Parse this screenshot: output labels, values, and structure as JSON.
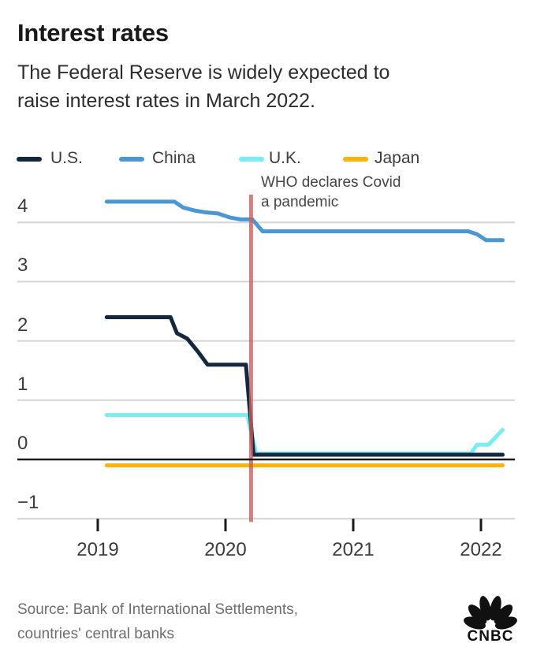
{
  "header": {
    "title": "Interest rates",
    "subtitle_line1": "The Federal Reserve is widely expected to",
    "subtitle_line2": "raise interest rates in March 2022."
  },
  "legend": [
    {
      "label": "U.S.",
      "color": "#13273f"
    },
    {
      "label": "China",
      "color": "#4b97d3"
    },
    {
      "label": "U.K.",
      "color": "#78edf4"
    },
    {
      "label": "Japan",
      "color": "#f9b30a"
    }
  ],
  "annotation": {
    "line1": "WHO declares Covid",
    "line2": "a pandemic",
    "event_year": 2020.2,
    "line_color": "rgba(202,94,90,0.8)"
  },
  "chart_data": {
    "type": "line",
    "title": "Interest rates (central bank policy rates, %)",
    "xlabel": "",
    "ylabel": "",
    "x_range": [
      2019.0,
      2022.25
    ],
    "ylim": [
      -1,
      4.5
    ],
    "grid": "horizontal",
    "legend_position": "top",
    "x_axis": {
      "ticks": [
        {
          "label": "2019",
          "value": 2019
        },
        {
          "label": "2020",
          "value": 2020
        },
        {
          "label": "2021",
          "value": 2021
        },
        {
          "label": "2022",
          "value": 2022
        }
      ]
    },
    "y_axis": {
      "ticks": [
        {
          "label": "4",
          "value": 4
        },
        {
          "label": "3",
          "value": 3
        },
        {
          "label": "2",
          "value": 2
        },
        {
          "label": "1",
          "value": 1
        },
        {
          "label": "0",
          "value": 0
        },
        {
          "label": "−1",
          "value": -1
        }
      ]
    },
    "event_line": {
      "x": 2020.2,
      "label": "WHO declares Covid a pandemic"
    },
    "series": [
      {
        "name": "U.S.",
        "color": "#13273f",
        "points": [
          [
            2019.07,
            2.4
          ],
          [
            2019.57,
            2.4
          ],
          [
            2019.62,
            2.13
          ],
          [
            2019.7,
            2.04
          ],
          [
            2019.78,
            1.83
          ],
          [
            2019.86,
            1.6
          ],
          [
            2020.16,
            1.6
          ],
          [
            2020.22,
            0.08
          ],
          [
            2022.17,
            0.08
          ]
        ]
      },
      {
        "name": "China",
        "color": "#4b97d3",
        "points": [
          [
            2019.07,
            4.35
          ],
          [
            2019.6,
            4.35
          ],
          [
            2019.67,
            4.25
          ],
          [
            2019.76,
            4.2
          ],
          [
            2019.84,
            4.17
          ],
          [
            2019.94,
            4.15
          ],
          [
            2020.04,
            4.08
          ],
          [
            2020.12,
            4.05
          ],
          [
            2020.21,
            4.05
          ],
          [
            2020.29,
            3.85
          ],
          [
            2021.9,
            3.85
          ],
          [
            2021.97,
            3.8
          ],
          [
            2022.04,
            3.7
          ],
          [
            2022.17,
            3.7
          ]
        ]
      },
      {
        "name": "U.K.",
        "color": "#78edf4",
        "points": [
          [
            2019.07,
            0.75
          ],
          [
            2020.17,
            0.75
          ],
          [
            2020.24,
            0.1
          ],
          [
            2021.92,
            0.1
          ],
          [
            2021.97,
            0.25
          ],
          [
            2022.06,
            0.25
          ],
          [
            2022.17,
            0.5
          ]
        ]
      },
      {
        "name": "Japan",
        "color": "#f9b30a",
        "points": [
          [
            2019.07,
            -0.1
          ],
          [
            2022.17,
            -0.1
          ]
        ]
      }
    ]
  },
  "footer": {
    "source_line1": "Source: Bank of International Settlements,",
    "source_line2": "countries' central banks",
    "logo_text": "CNBC"
  }
}
